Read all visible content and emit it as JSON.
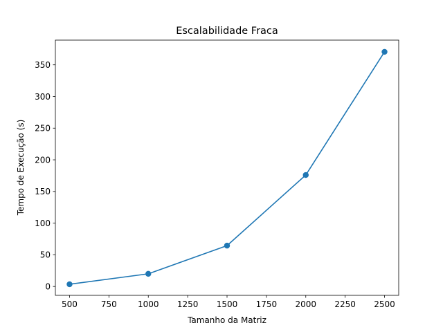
{
  "chart_data": {
    "type": "line",
    "title": "Escalabilidade Fraca",
    "xlabel": "Tamanho da Matriz",
    "ylabel": "Tempo de Execução (s)",
    "x": [
      500,
      1000,
      1500,
      2000,
      2500
    ],
    "series": [
      {
        "values": [
          3.5,
          20.0,
          64.5,
          176.0,
          370.5
        ]
      }
    ],
    "xlim": [
      410,
      2590
    ],
    "ylim": [
      -14,
      389
    ],
    "xticks": [
      500,
      750,
      1000,
      1250,
      1500,
      1750,
      2000,
      2250,
      2500
    ],
    "yticks": [
      0,
      50,
      100,
      150,
      200,
      250,
      300,
      350
    ],
    "grid": false,
    "markers": true,
    "colors": {
      "line": "#1f77b4"
    }
  }
}
